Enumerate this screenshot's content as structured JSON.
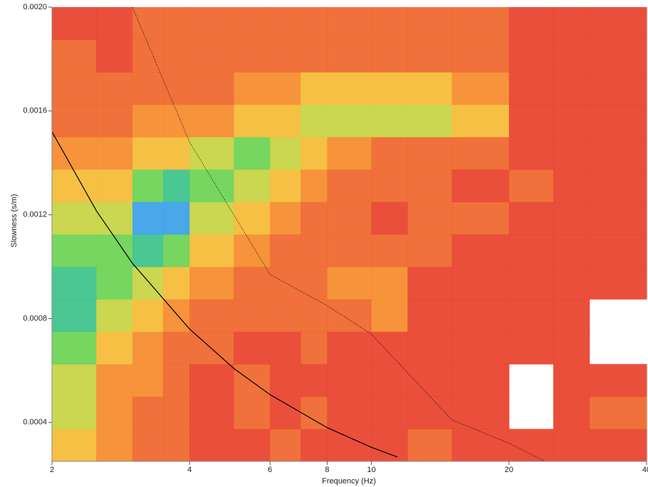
{
  "chart_data": {
    "type": "heatmap",
    "x_label": "Frequency (Hz)",
    "y_label": "Slowness (s/m)",
    "xscale": "log",
    "xlim": [
      2,
      40
    ],
    "xticks": [
      2,
      4,
      6,
      8,
      10,
      20,
      40
    ],
    "ylim": [
      0.00025,
      0.002
    ],
    "yticks": [
      0.0004,
      0.0008,
      0.0012,
      0.0016,
      {
        "value": 0.002,
        "label": "0.0020"
      }
    ],
    "x_bins": [
      2,
      2.5,
      3,
      3.5,
      4,
      5,
      6,
      7,
      8,
      10,
      12,
      15,
      20,
      25,
      30,
      40
    ],
    "y_bins": [
      0.00025,
      0.000375,
      0.0005,
      0.000625,
      0.00075,
      0.000875,
      0.001,
      0.001125,
      0.00125,
      0.001375,
      0.0015,
      0.001625,
      0.00175,
      0.001875,
      0.002
    ],
    "z": [
      [
        0.5,
        0.4,
        0.3,
        0.3,
        0.2,
        0.2,
        0.3,
        0.2,
        0.2,
        0.2,
        0.3,
        0.2,
        0.1,
        0.1,
        0.2
      ],
      [
        0.6,
        0.4,
        0.3,
        0.3,
        0.2,
        0.3,
        0.2,
        0.3,
        0.2,
        0.2,
        0.2,
        0.1,
        0,
        0.2,
        0.3
      ],
      [
        0.6,
        0.4,
        0.4,
        0.3,
        0.2,
        0.3,
        0.2,
        0.2,
        0.2,
        0.2,
        0.2,
        0.1,
        0,
        0.1,
        0.1
      ],
      [
        0.7,
        0.5,
        0.4,
        0.3,
        0.3,
        0.2,
        0.2,
        0.3,
        0.2,
        0.2,
        0.1,
        0.1,
        0.2,
        0.1,
        0
      ],
      [
        0.8,
        0.6,
        0.5,
        0.4,
        0.3,
        0.3,
        0.3,
        0.3,
        0.3,
        0.4,
        0.2,
        0.1,
        0.1,
        0.1,
        0
      ],
      [
        0.8,
        0.7,
        0.6,
        0.5,
        0.4,
        0.3,
        0.3,
        0.3,
        0.4,
        0.4,
        0.2,
        0.2,
        0.2,
        0.1,
        0.1
      ],
      [
        0.7,
        0.7,
        0.8,
        0.7,
        0.5,
        0.4,
        0.3,
        0.3,
        0.3,
        0.3,
        0.3,
        0.2,
        0.2,
        0.1,
        0.2
      ],
      [
        0.6,
        0.6,
        0.9,
        0.9,
        0.6,
        0.5,
        0.4,
        0.3,
        0.3,
        0.2,
        0.3,
        0.3,
        0.2,
        0.2,
        0.1
      ],
      [
        0.5,
        0.5,
        0.7,
        0.8,
        0.7,
        0.6,
        0.5,
        0.4,
        0.3,
        0.3,
        0.3,
        0.2,
        0.3,
        0.2,
        0.2
      ],
      [
        0.4,
        0.4,
        0.5,
        0.5,
        0.6,
        0.7,
        0.6,
        0.5,
        0.4,
        0.3,
        0.3,
        0.3,
        0.2,
        0.2,
        0.1
      ],
      [
        0.3,
        0.3,
        0.4,
        0.4,
        0.4,
        0.5,
        0.5,
        0.6,
        0.6,
        0.6,
        0.6,
        0.5,
        0.2,
        0.2,
        0.2
      ],
      [
        0.3,
        0.3,
        0.3,
        0.3,
        0.3,
        0.4,
        0.4,
        0.5,
        0.5,
        0.5,
        0.5,
        0.4,
        0.2,
        0.2,
        0.1
      ],
      [
        0.3,
        0.2,
        0.3,
        0.3,
        0.3,
        0.3,
        0.3,
        0.3,
        0.3,
        0.3,
        0.3,
        0.3,
        0.2,
        0.2,
        0.2
      ],
      [
        0.2,
        0.2,
        0.3,
        0.3,
        0.3,
        0.3,
        0.3,
        0.3,
        0.3,
        0.3,
        0.3,
        0.3,
        0.2,
        0.2,
        0.2
      ]
    ],
    "lines": [
      {
        "color": "#000000",
        "line_style": "solid",
        "x": [
          2,
          2.5,
          3,
          4,
          5,
          6,
          8,
          10,
          11.4
        ],
        "y": [
          0.00152,
          0.001216,
          0.001013,
          0.00076,
          0.000608,
          0.000507,
          0.00038,
          0.000304,
          0.000267
        ]
      },
      {
        "color": "#000000",
        "line_style": "dotted",
        "x": [
          3,
          4,
          6,
          8,
          10,
          15,
          20,
          24
        ],
        "y": [
          0.002,
          0.00148,
          0.00097,
          0.00085,
          0.00074,
          0.00041,
          0.00032,
          0.00025
        ]
      }
    ]
  }
}
